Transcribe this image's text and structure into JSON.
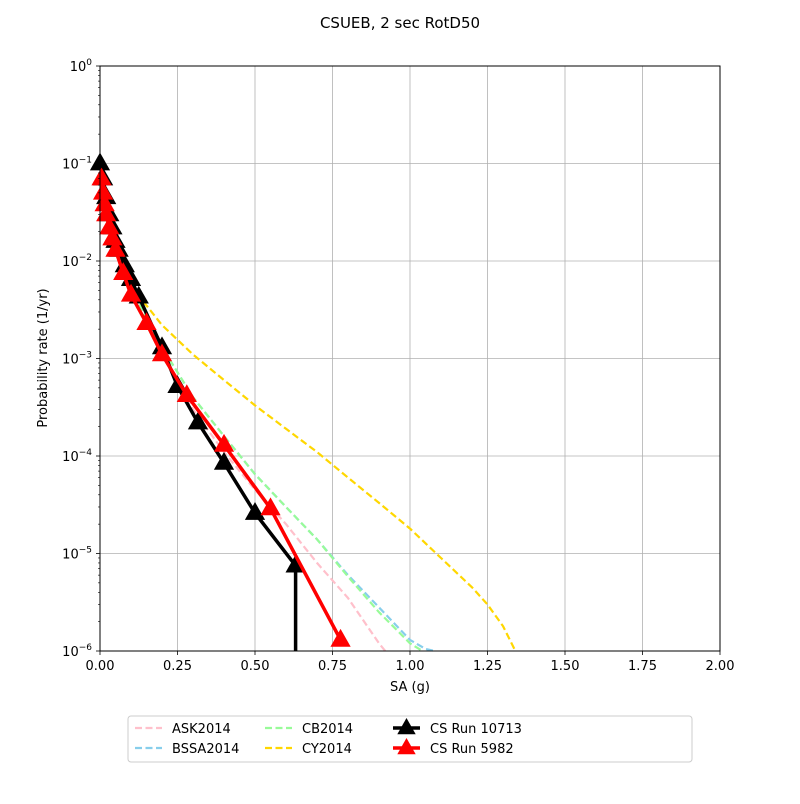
{
  "chart_data": {
    "type": "line",
    "title": "CSUEB, 2 sec RotD50",
    "xlabel": "SA (g)",
    "ylabel": "Probability rate (1/yr)",
    "xlim": [
      0,
      2.0
    ],
    "ylim": [
      1e-06,
      1
    ],
    "yscale": "log",
    "grid": true,
    "legend_position": "bottom-center",
    "x_ticks": [
      "0.00",
      "0.25",
      "0.50",
      "0.75",
      "1.00",
      "1.25",
      "1.50",
      "1.75",
      "2.00"
    ],
    "y_ticks": [
      {
        "base": "10",
        "exp": "0"
      },
      {
        "base": "10",
        "exp": "-1"
      },
      {
        "base": "10",
        "exp": "-2"
      },
      {
        "base": "10",
        "exp": "-3"
      },
      {
        "base": "10",
        "exp": "-4"
      },
      {
        "base": "10",
        "exp": "-5"
      },
      {
        "base": "10",
        "exp": "-6"
      }
    ],
    "series": [
      {
        "name": "ASK2014",
        "color": "#ffc0cb",
        "style": "dashed",
        "x": [
          0.0,
          0.02,
          0.05,
          0.1,
          0.15,
          0.2,
          0.3,
          0.4,
          0.5,
          0.6,
          0.7,
          0.8,
          0.9,
          0.92
        ],
        "y": [
          0.1,
          0.04,
          0.016,
          0.0055,
          0.0025,
          0.0011,
          0.0003,
          0.00011,
          4.5e-05,
          2e-05,
          8e-06,
          3.5e-06,
          1.2e-06,
          1e-06
        ]
      },
      {
        "name": "BSSA2014",
        "color": "#87ceeb",
        "style": "dashed",
        "x": [
          0.0,
          0.02,
          0.05,
          0.1,
          0.15,
          0.2,
          0.3,
          0.4,
          0.5,
          0.6,
          0.7,
          0.8,
          0.9,
          1.0,
          1.05,
          1.08
        ],
        "y": [
          0.1,
          0.04,
          0.016,
          0.0055,
          0.0025,
          0.0013,
          0.0004,
          0.00016,
          6.5e-05,
          3e-05,
          1.4e-05,
          6e-06,
          2.8e-06,
          1.3e-06,
          1.05e-06,
          1e-06
        ]
      },
      {
        "name": "CB2014",
        "color": "#98fb98",
        "style": "dashed",
        "x": [
          0.0,
          0.02,
          0.05,
          0.1,
          0.15,
          0.2,
          0.3,
          0.4,
          0.5,
          0.6,
          0.7,
          0.8,
          0.9,
          1.0,
          1.04
        ],
        "y": [
          0.1,
          0.04,
          0.016,
          0.0055,
          0.0025,
          0.0013,
          0.0004,
          0.00016,
          6.5e-05,
          3e-05,
          1.4e-05,
          5.8e-06,
          2.5e-06,
          1.2e-06,
          1e-06
        ]
      },
      {
        "name": "CY2014",
        "color": "#ffd700",
        "style": "dashed",
        "x": [
          0.0,
          0.02,
          0.05,
          0.1,
          0.15,
          0.2,
          0.3,
          0.4,
          0.5,
          0.6,
          0.7,
          0.8,
          0.9,
          1.0,
          1.1,
          1.2,
          1.25,
          1.3,
          1.34
        ],
        "y": [
          0.1,
          0.04,
          0.016,
          0.0055,
          0.0035,
          0.0022,
          0.0011,
          0.0006,
          0.00033,
          0.00019,
          0.00011,
          6e-05,
          3.3e-05,
          1.8e-05,
          9e-06,
          4.5e-06,
          3e-06,
          1.8e-06,
          1e-06
        ]
      },
      {
        "name": "CS Run 10713",
        "color": "#000000",
        "style": "solid",
        "marker": "triangle",
        "x": [
          0.0,
          0.01,
          0.02,
          0.03,
          0.04,
          0.05,
          0.06,
          0.08,
          0.1,
          0.125,
          0.2,
          0.25,
          0.316,
          0.4,
          0.5,
          0.631,
          0.631
        ],
        "y": [
          0.1,
          0.07,
          0.045,
          0.03,
          0.022,
          0.016,
          0.013,
          0.009,
          0.0065,
          0.0043,
          0.0013,
          0.00052,
          0.00022,
          8.5e-05,
          2.6e-05,
          7.5e-06,
          1e-06
        ],
        "markers": [
          0.0,
          0.01,
          0.02,
          0.03,
          0.04,
          0.05,
          0.06,
          0.08,
          0.1,
          0.125,
          0.2,
          0.25,
          0.316,
          0.4,
          0.5,
          0.631
        ]
      },
      {
        "name": "CS Run 5982",
        "color": "#ff0000",
        "style": "solid",
        "marker": "triangle",
        "x": [
          0.005,
          0.01,
          0.015,
          0.02,
          0.03,
          0.04,
          0.05,
          0.075,
          0.1,
          0.15,
          0.2,
          0.28,
          0.4,
          0.55,
          0.776
        ],
        "y": [
          0.07,
          0.05,
          0.038,
          0.03,
          0.022,
          0.017,
          0.013,
          0.0075,
          0.0045,
          0.0023,
          0.0011,
          0.00042,
          0.00013,
          2.9e-05,
          1.3e-06
        ]
      }
    ]
  }
}
